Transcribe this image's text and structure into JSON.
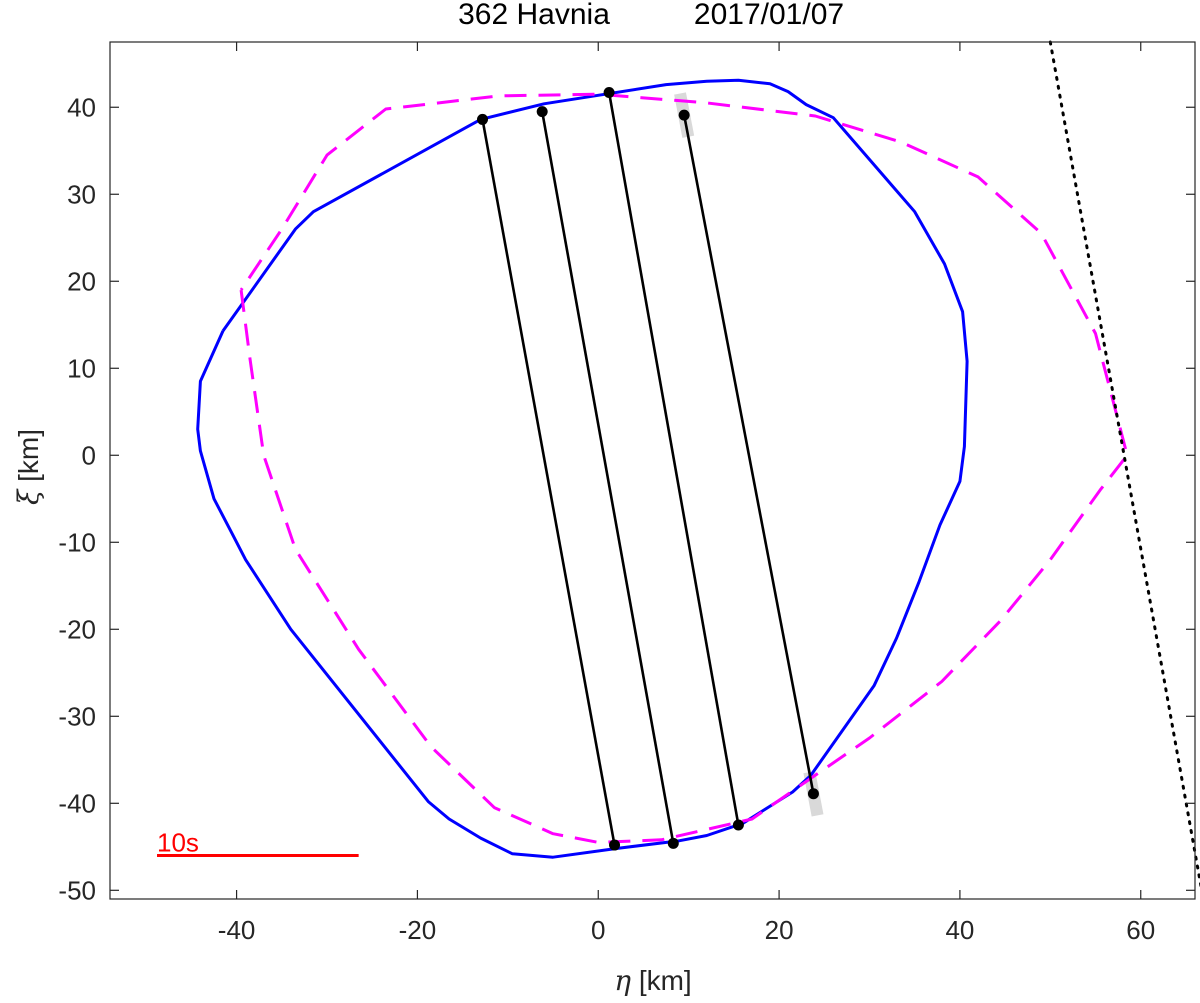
{
  "chart_data": {
    "type": "line",
    "title": {
      "object": "362 Havnia",
      "date": "2017/01/07"
    },
    "xlabel": {
      "symbol": "η",
      "unit": " [km]"
    },
    "ylabel": {
      "symbol": "ξ",
      "unit": " [km]"
    },
    "xlim": [
      -54,
      66
    ],
    "ylim": [
      -51,
      47.5
    ],
    "xticks": [
      -40,
      -20,
      0,
      20,
      40,
      60
    ],
    "yticks": [
      -50,
      -40,
      -30,
      -20,
      -10,
      0,
      10,
      20,
      30,
      40
    ],
    "grid": false,
    "series": [
      {
        "style": "solid",
        "color": "#0000ff",
        "points": [
          [
            -41.5,
            14.3
          ],
          [
            -44,
            8.5
          ],
          [
            -44.3,
            3
          ],
          [
            -44,
            0.5
          ],
          [
            -42.5,
            -5
          ],
          [
            -40.5,
            -9
          ],
          [
            -39,
            -12
          ],
          [
            -34,
            -20
          ],
          [
            -18.8,
            -39.8
          ],
          [
            -16.5,
            -41.8
          ],
          [
            -13,
            -44
          ],
          [
            -9.5,
            -45.8
          ],
          [
            -5,
            -46.2
          ],
          [
            2,
            -45.2
          ],
          [
            9,
            -44.3
          ],
          [
            12,
            -43.7
          ],
          [
            16,
            -42.3
          ],
          [
            21.5,
            -38.7
          ],
          [
            23.5,
            -36.8
          ],
          [
            30.5,
            -26.5
          ],
          [
            33,
            -21
          ],
          [
            35.5,
            -14.5
          ],
          [
            37.8,
            -8
          ],
          [
            40,
            -3
          ],
          [
            40.5,
            1
          ],
          [
            40.8,
            10.8
          ],
          [
            40.3,
            16.5
          ],
          [
            38.3,
            22
          ],
          [
            35,
            28
          ],
          [
            26,
            38.8
          ],
          [
            23,
            40.3
          ],
          [
            21,
            41.8
          ],
          [
            19,
            42.7
          ],
          [
            15.5,
            43.1
          ],
          [
            12,
            43
          ],
          [
            7.5,
            42.6
          ],
          [
            -6,
            40.4
          ],
          [
            -13,
            38.6
          ],
          [
            -31.5,
            28
          ],
          [
            -33.5,
            26
          ],
          [
            -41.5,
            14.3
          ]
        ]
      },
      {
        "style": "dashed",
        "color": "#ff00ff",
        "points": [
          [
            -39.5,
            19
          ],
          [
            -38.5,
            11
          ],
          [
            -37,
            0
          ],
          [
            -33.5,
            -10.8
          ],
          [
            -26.5,
            -22.3
          ],
          [
            -18.5,
            -33.5
          ],
          [
            -11.5,
            -40.5
          ],
          [
            -5,
            -43.5
          ],
          [
            0,
            -44.5
          ],
          [
            7,
            -44.2
          ],
          [
            17,
            -41.8
          ],
          [
            23,
            -37.5
          ],
          [
            30,
            -32.5
          ],
          [
            38,
            -26
          ],
          [
            44.5,
            -19
          ],
          [
            50,
            -12
          ],
          [
            55.5,
            -4
          ],
          [
            58.5,
            0
          ],
          [
            55,
            14
          ],
          [
            49,
            25.5
          ],
          [
            42,
            32
          ],
          [
            33.5,
            36
          ],
          [
            24,
            39
          ],
          [
            12,
            40.5
          ],
          [
            0,
            41.5
          ],
          [
            -11,
            41.3
          ],
          [
            -23.5,
            39.8
          ],
          [
            -30,
            34.5
          ],
          [
            -35,
            26
          ],
          [
            -39.5,
            19
          ]
        ]
      },
      {
        "style": "dotted",
        "color": "#000000",
        "points": [
          [
            50,
            47.5
          ],
          [
            66.8,
            -50.3
          ]
        ]
      }
    ],
    "chords": [
      {
        "start": [
          -12.8,
          38.6
        ],
        "end": [
          1.8,
          -44.8
        ],
        "uncertain": false
      },
      {
        "start": [
          -6.2,
          39.5
        ],
        "end": [
          8.3,
          -44.6
        ],
        "uncertain": false
      },
      {
        "start": [
          1.2,
          41.7
        ],
        "end": [
          15.5,
          -42.5
        ],
        "uncertain": false
      },
      {
        "start": [
          9.5,
          39.1
        ],
        "end": [
          23.8,
          -38.9
        ],
        "uncertain": true
      }
    ],
    "uncertainty_color": "#d9d9d9",
    "scale_bar": {
      "label": "10s",
      "color": "#ff0000",
      "from": [
        -48.8,
        -46
      ],
      "to": [
        -26.5,
        -46
      ]
    }
  }
}
